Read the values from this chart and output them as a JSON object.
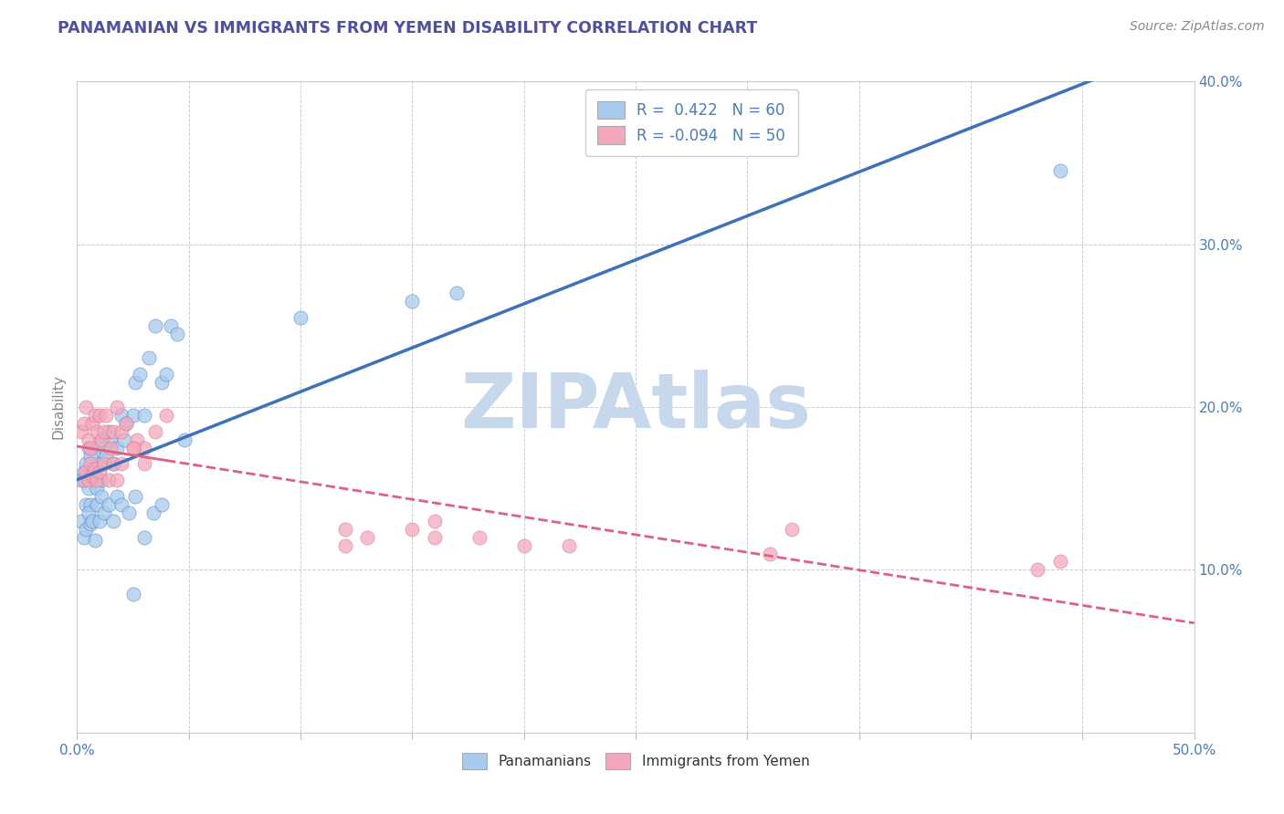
{
  "title": "PANAMANIAN VS IMMIGRANTS FROM YEMEN DISABILITY CORRELATION CHART",
  "source_text": "Source: ZipAtlas.com",
  "ylabel": "Disability",
  "xlim": [
    0.0,
    0.5
  ],
  "ylim": [
    0.0,
    0.4
  ],
  "xticks": [
    0.0,
    0.05,
    0.1,
    0.15,
    0.2,
    0.25,
    0.3,
    0.35,
    0.4,
    0.45,
    0.5
  ],
  "yticks": [
    0.0,
    0.1,
    0.2,
    0.3,
    0.4
  ],
  "color_blue": "#A8CAEC",
  "color_pink": "#F2A8BC",
  "color_blue_line": "#3B72B8",
  "color_pink_line": "#E06080",
  "color_title": "#5050A0",
  "color_text": "#4A7DB5",
  "watermark": "ZIPAtlas",
  "watermark_color": "#C8D8EC",
  "legend_r1": "R =  0.422   N = 60",
  "legend_r2": "R = -0.094   N = 50",
  "blue_scatter_x": [
    0.002,
    0.003,
    0.004,
    0.005,
    0.005,
    0.006,
    0.007,
    0.008,
    0.008,
    0.009,
    0.01,
    0.011,
    0.012,
    0.013,
    0.015,
    0.016,
    0.018,
    0.02,
    0.021,
    0.022,
    0.025,
    0.026,
    0.028,
    0.03,
    0.032,
    0.035,
    0.038,
    0.04,
    0.042,
    0.045,
    0.002,
    0.003,
    0.004,
    0.005,
    0.006,
    0.007,
    0.008,
    0.009,
    0.01,
    0.011,
    0.012,
    0.014,
    0.016,
    0.018,
    0.02,
    0.023,
    0.026,
    0.03,
    0.034,
    0.038,
    0.004,
    0.006,
    0.01,
    0.014,
    0.048,
    0.1,
    0.15,
    0.17,
    0.44,
    0.025
  ],
  "blue_scatter_y": [
    0.155,
    0.16,
    0.14,
    0.15,
    0.175,
    0.14,
    0.16,
    0.155,
    0.17,
    0.15,
    0.165,
    0.155,
    0.175,
    0.17,
    0.18,
    0.165,
    0.175,
    0.195,
    0.18,
    0.19,
    0.195,
    0.215,
    0.22,
    0.195,
    0.23,
    0.25,
    0.215,
    0.22,
    0.25,
    0.245,
    0.13,
    0.12,
    0.125,
    0.135,
    0.128,
    0.13,
    0.118,
    0.14,
    0.13,
    0.145,
    0.135,
    0.14,
    0.13,
    0.145,
    0.14,
    0.135,
    0.145,
    0.12,
    0.135,
    0.14,
    0.165,
    0.17,
    0.178,
    0.185,
    0.18,
    0.255,
    0.265,
    0.27,
    0.345,
    0.085
  ],
  "pink_scatter_x": [
    0.002,
    0.003,
    0.004,
    0.005,
    0.006,
    0.007,
    0.008,
    0.009,
    0.01,
    0.011,
    0.012,
    0.013,
    0.015,
    0.016,
    0.018,
    0.02,
    0.022,
    0.025,
    0.027,
    0.03,
    0.003,
    0.004,
    0.005,
    0.006,
    0.007,
    0.008,
    0.009,
    0.01,
    0.012,
    0.014,
    0.016,
    0.018,
    0.02,
    0.025,
    0.03,
    0.035,
    0.04,
    0.12,
    0.13,
    0.15,
    0.16,
    0.18,
    0.2,
    0.22,
    0.31,
    0.32,
    0.43,
    0.44,
    0.12,
    0.16
  ],
  "pink_scatter_y": [
    0.185,
    0.19,
    0.2,
    0.18,
    0.175,
    0.19,
    0.195,
    0.185,
    0.195,
    0.18,
    0.185,
    0.195,
    0.175,
    0.185,
    0.2,
    0.185,
    0.19,
    0.175,
    0.18,
    0.175,
    0.155,
    0.16,
    0.155,
    0.165,
    0.158,
    0.162,
    0.155,
    0.16,
    0.165,
    0.155,
    0.165,
    0.155,
    0.165,
    0.175,
    0.165,
    0.185,
    0.195,
    0.125,
    0.12,
    0.125,
    0.13,
    0.12,
    0.115,
    0.115,
    0.11,
    0.125,
    0.1,
    0.105,
    0.115,
    0.12
  ]
}
